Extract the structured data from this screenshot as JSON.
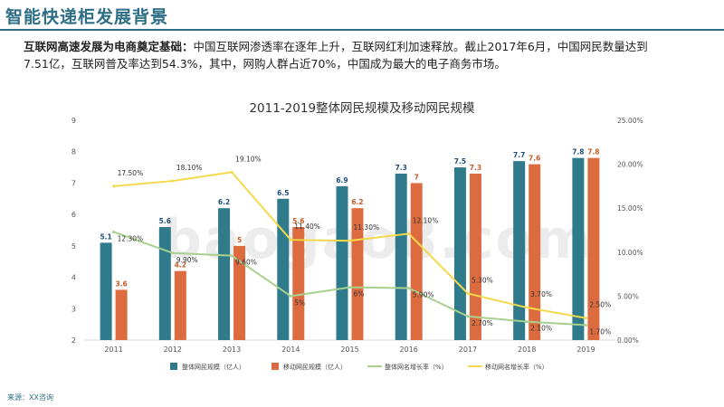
{
  "slide": {
    "title": "智能快递柜发展背景",
    "intro_bold": "互联网高速发展为电商奠定基础：",
    "intro_text": "中国互联网渗透率在逐年上升，互联网红利加速释放。截止2017年6月，中国网民数量达到7.51亿，互联网普及率达到54.3%，其中，网购人群占近70%，中国成为最大的电子商务市场。",
    "source": "来源：XX咨询",
    "watermark": "baogao8.com"
  },
  "chart_data": {
    "type": "bar",
    "title": "2011-2019整体网民规模及移动网民规模",
    "categories": [
      "2011",
      "2012",
      "2013",
      "2014",
      "2015",
      "2016",
      "2017",
      "2018",
      "2019"
    ],
    "y_left": {
      "min": 2,
      "max": 9,
      "ticks": [
        "2",
        "3",
        "4",
        "5",
        "6",
        "7",
        "8",
        "9"
      ]
    },
    "y_right": {
      "min": 0,
      "max": 25,
      "ticks": [
        "0.00%",
        "5.00%",
        "10.00%",
        "15.00%",
        "20.00%",
        "25.00%"
      ]
    },
    "series": [
      {
        "name": "整体网民规模（亿人）",
        "kind": "bar",
        "axis": "left",
        "color": "#2f7b8c",
        "values": [
          5.1,
          5.6,
          6.2,
          6.5,
          6.9,
          7.3,
          7.5,
          7.7,
          7.8
        ],
        "labels": [
          "5.1",
          "5.6",
          "6.2",
          "6.5",
          "6.9",
          "7.3",
          "7.5",
          "7.7",
          "7.8"
        ]
      },
      {
        "name": "移动网民规模（亿人）",
        "kind": "bar",
        "axis": "left",
        "color": "#dd6b40",
        "values": [
          3.6,
          4.2,
          5,
          5.6,
          6.2,
          7,
          7.3,
          7.6,
          7.8
        ],
        "labels": [
          "3.6",
          "4.2",
          "5",
          "5.6",
          "6.2",
          "7",
          "7.3",
          "7.6",
          "7.8"
        ]
      },
      {
        "name": "整体网名增长率（%）",
        "kind": "line",
        "axis": "right",
        "color": "#a9d08e",
        "values": [
          12.3,
          9.9,
          9.6,
          5,
          6,
          5.9,
          2.7,
          2.1,
          1.7
        ],
        "labels": [
          "12.30%",
          "9.90%",
          "9.60%",
          "5%",
          "6%",
          "5.90%",
          "2.70%",
          "2.10%",
          "1.70%"
        ]
      },
      {
        "name": "移动网名增长率（%）",
        "kind": "line",
        "axis": "right",
        "color": "#f5d94a",
        "values": [
          17.5,
          18.1,
          19.1,
          11.4,
          11.3,
          12.1,
          5.3,
          3.7,
          2.5
        ],
        "labels": [
          "17.50%",
          "18.10%",
          "19.10%",
          "11.40%",
          "11.30%",
          "12.10%",
          "5.30%",
          "3.70%",
          "2.50%"
        ]
      }
    ],
    "legend_position": "bottom"
  }
}
